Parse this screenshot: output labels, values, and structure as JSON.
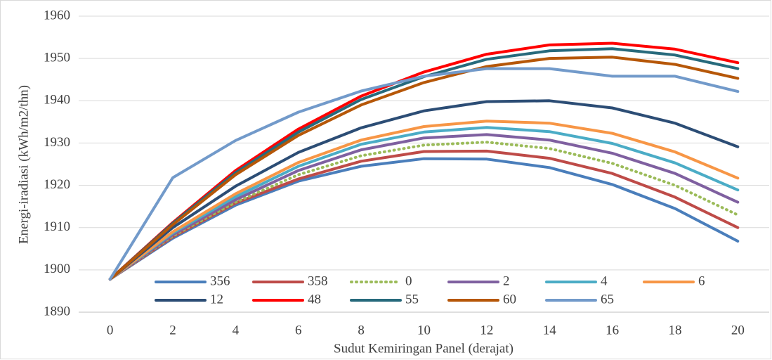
{
  "chart_data": {
    "type": "line",
    "x_label": "Sudut Kemiringan Panel (derajat)",
    "y_label": "Energi-iradiasi (kWh/m2/thn)",
    "categories": [
      "0",
      "2",
      "4",
      "6",
      "8",
      "10",
      "12",
      "14",
      "16",
      "18",
      "20"
    ],
    "ylim": [
      1890,
      1960
    ],
    "yticks": [
      1890,
      1900,
      1910,
      1920,
      1930,
      1940,
      1950,
      1960
    ],
    "grid": true,
    "legend": "bottom",
    "series": [
      {
        "name": "356",
        "color": "#4a7ebb",
        "dash": "solid",
        "values": [
          1897.8,
          1907.5,
          1915.3,
          1921,
          1924.5,
          1926.3,
          1926.2,
          1924.2,
          1920.2,
          1914.5,
          1906.8
        ]
      },
      {
        "name": "358",
        "color": "#be4b48",
        "dash": "solid",
        "values": [
          1897.8,
          1907.8,
          1915.8,
          1921.5,
          1925.7,
          1928,
          1928.1,
          1926.4,
          1922.8,
          1917.2,
          1910
        ]
      },
      {
        "name": "0",
        "color": "#9bbb59",
        "dash": "dotted",
        "values": [
          1897.8,
          1908,
          1916,
          1922.5,
          1927,
          1929.5,
          1930.2,
          1928.7,
          1925.2,
          1920,
          1913
        ]
      },
      {
        "name": "2",
        "color": "#7f60a0",
        "dash": "solid",
        "values": [
          1897.8,
          1908.3,
          1916.6,
          1923.5,
          1928.4,
          1931.2,
          1932,
          1930.7,
          1927.6,
          1922.8,
          1916
        ]
      },
      {
        "name": "4",
        "color": "#4bacc6",
        "dash": "solid",
        "values": [
          1897.8,
          1908.7,
          1917.3,
          1924.5,
          1929.7,
          1932.6,
          1933.7,
          1932.7,
          1929.9,
          1925.3,
          1918.9
        ]
      },
      {
        "name": "6",
        "color": "#f79646",
        "dash": "solid",
        "values": [
          1897.8,
          1909,
          1918,
          1925.4,
          1930.7,
          1933.9,
          1935.2,
          1934.7,
          1932.3,
          1927.9,
          1921.7
        ]
      },
      {
        "name": "12",
        "color": "#2c4d75",
        "dash": "solid",
        "values": [
          1897.8,
          1910,
          1919.8,
          1927.8,
          1933.6,
          1937.6,
          1939.8,
          1940,
          1938.3,
          1934.7,
          1929.1
        ]
      },
      {
        "name": "48",
        "color": "#ff0000",
        "dash": "solid",
        "values": [
          1897.8,
          1911.2,
          1923.5,
          1933.3,
          1941.1,
          1946.8,
          1951,
          1953.2,
          1953.6,
          1952.2,
          1949
        ]
      },
      {
        "name": "55",
        "color": "#276a7c",
        "dash": "solid",
        "values": [
          1897.8,
          1911,
          1923,
          1932.6,
          1940.3,
          1945.7,
          1949.8,
          1951.8,
          1952.3,
          1950.8,
          1947.6
        ]
      },
      {
        "name": "60",
        "color": "#b65708",
        "dash": "solid",
        "values": [
          1897.8,
          1910.7,
          1922.5,
          1931.8,
          1939,
          1944.3,
          1948.1,
          1950,
          1950.3,
          1948.6,
          1945.3
        ]
      },
      {
        "name": "65",
        "color": "#729aca",
        "dash": "solid",
        "values": [
          1897.8,
          1921.8,
          1930.6,
          1937.3,
          1942.3,
          1945.8,
          1947.6,
          1947.6,
          1945.8,
          1945.8,
          1942.2
        ]
      }
    ]
  }
}
